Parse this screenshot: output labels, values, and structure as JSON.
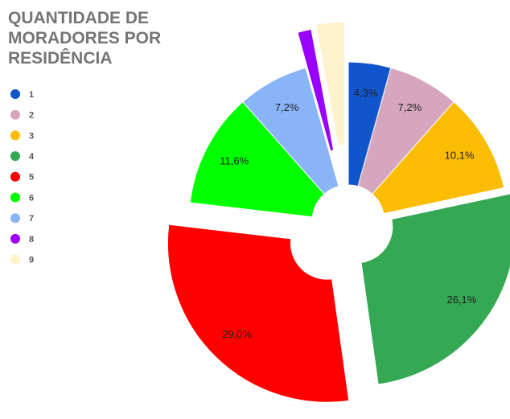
{
  "chart_data": {
    "type": "donut",
    "title": "QUANTIDADE DE MORADORES POR RESIDÊNCIA",
    "categories": [
      "1",
      "2",
      "3",
      "4",
      "5",
      "6",
      "7",
      "8",
      "9"
    ],
    "values": [
      4.3,
      7.2,
      10.1,
      26.1,
      29.0,
      11.6,
      7.2,
      1.4,
      2.9
    ],
    "value_labels": [
      "4,3%",
      "7,2%",
      "10,1%",
      "26,1%",
      "29,0%",
      "11,6%",
      "7,2%",
      null,
      null
    ],
    "colors": [
      "#1155cc",
      "#d5a6bd",
      "#fbbc04",
      "#34a853",
      "#ff0000",
      "#00ff00",
      "#8ab4f8",
      "#9900ff",
      "#fff2cc"
    ],
    "legend": "left"
  }
}
